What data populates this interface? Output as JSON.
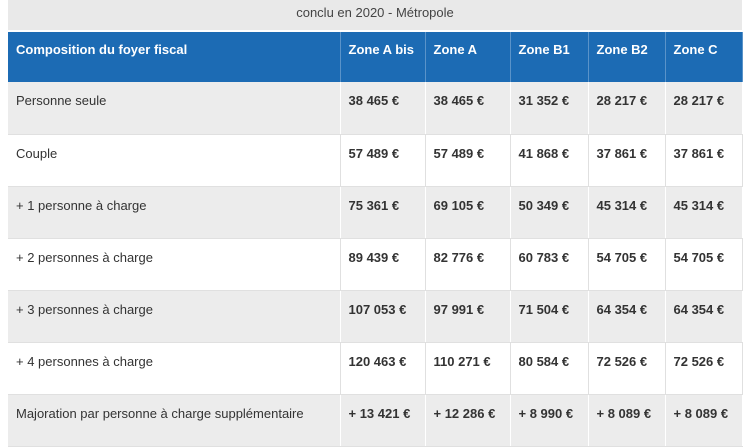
{
  "caption": "conclu en 2020 - Métropole",
  "table": {
    "header": [
      "Composition du foyer fiscal",
      "Zone A bis",
      "Zone A",
      "Zone B1",
      "Zone B2",
      "Zone C"
    ],
    "rows": [
      [
        "Personne seule",
        "38 465 €",
        "38 465 €",
        "31 352 €",
        "28 217 €",
        "28 217 €"
      ],
      [
        "Couple",
        "57 489 €",
        "57 489 €",
        "41 868 €",
        "37 861 €",
        "37 861 €"
      ],
      [
        "+ 1 personne à charge",
        "75 361 €",
        "69 105 €",
        "50 349 €",
        "45 314 €",
        "45 314 €"
      ],
      [
        "+ 2 personnes à charge",
        "89 439 €",
        "82 776 €",
        "60 783 €",
        "54 705 €",
        "54 705 €"
      ],
      [
        "+ 3 personnes à charge",
        "107 053 €",
        "97 991 €",
        "71 504 €",
        "64 354 €",
        "64 354 €"
      ],
      [
        "+ 4 personnes à charge",
        "120 463 €",
        "110 271 €",
        "80 584 €",
        "72 526 €",
        "72 526 €"
      ],
      [
        "Majoration par personne à charge supplémentaire",
        "+ 13 421 €",
        "+ 12 286 €",
        "+ 8 990 €",
        "+ 8 089 €",
        "+ 8 089 €"
      ]
    ]
  }
}
